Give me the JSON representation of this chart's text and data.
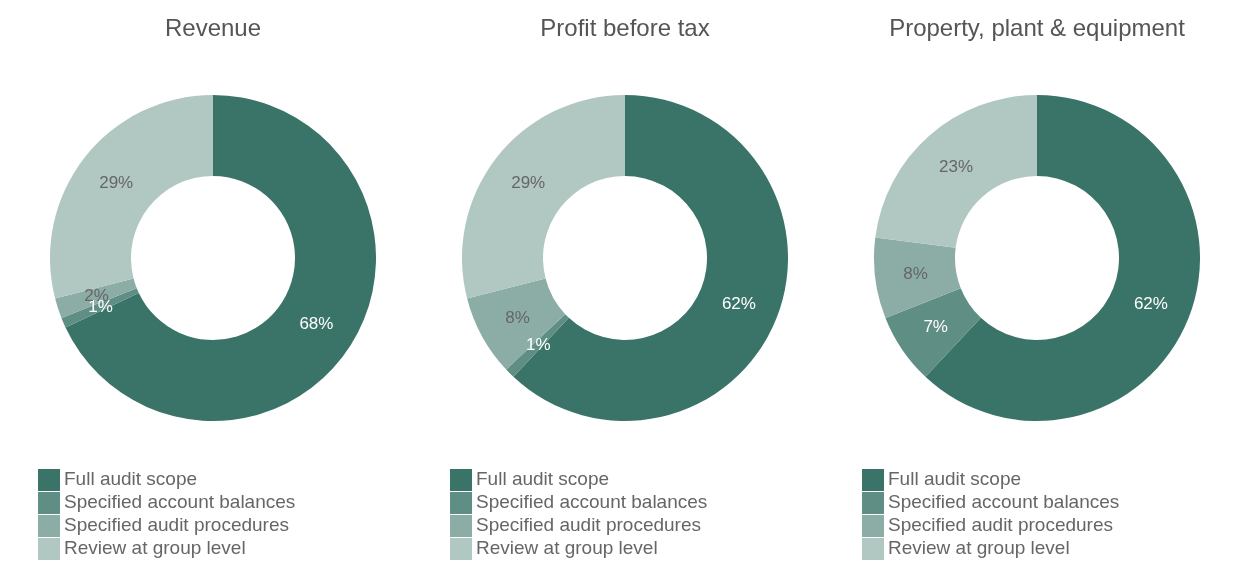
{
  "chart_data": [
    {
      "type": "donut",
      "title": "Revenue",
      "categories": [
        "Full audit scope",
        "Specified account balances",
        "Specified audit procedures",
        "Review at group level"
      ],
      "values": [
        68,
        1,
        2,
        29
      ],
      "value_labels": [
        "68%",
        "1%",
        "2%",
        "29%"
      ],
      "colors": [
        "#3a7468",
        "#5f8e84",
        "#8badA5",
        "#b0c7c2"
      ],
      "legend": "bottom"
    },
    {
      "type": "donut",
      "title": "Profit before tax",
      "categories": [
        "Full audit scope",
        "Specified account balances",
        "Specified audit procedures",
        "Review at group level"
      ],
      "values": [
        62,
        1,
        8,
        29
      ],
      "value_labels": [
        "62%",
        "1%",
        "8%",
        "29%"
      ],
      "colors": [
        "#3a7468",
        "#5f8e84",
        "#8badA5",
        "#b0c7c2"
      ],
      "legend": "bottom"
    },
    {
      "type": "donut",
      "title": "Property, plant & equipment",
      "categories": [
        "Full audit scope",
        "Specified account balances",
        "Specified audit procedures",
        "Review at group level"
      ],
      "values": [
        62,
        7,
        8,
        23
      ],
      "value_labels": [
        "62%",
        "7%",
        "8%",
        "23%"
      ],
      "colors": [
        "#3a7468",
        "#5f8e84",
        "#8badA5",
        "#b0c7c2"
      ],
      "legend": "bottom"
    }
  ]
}
